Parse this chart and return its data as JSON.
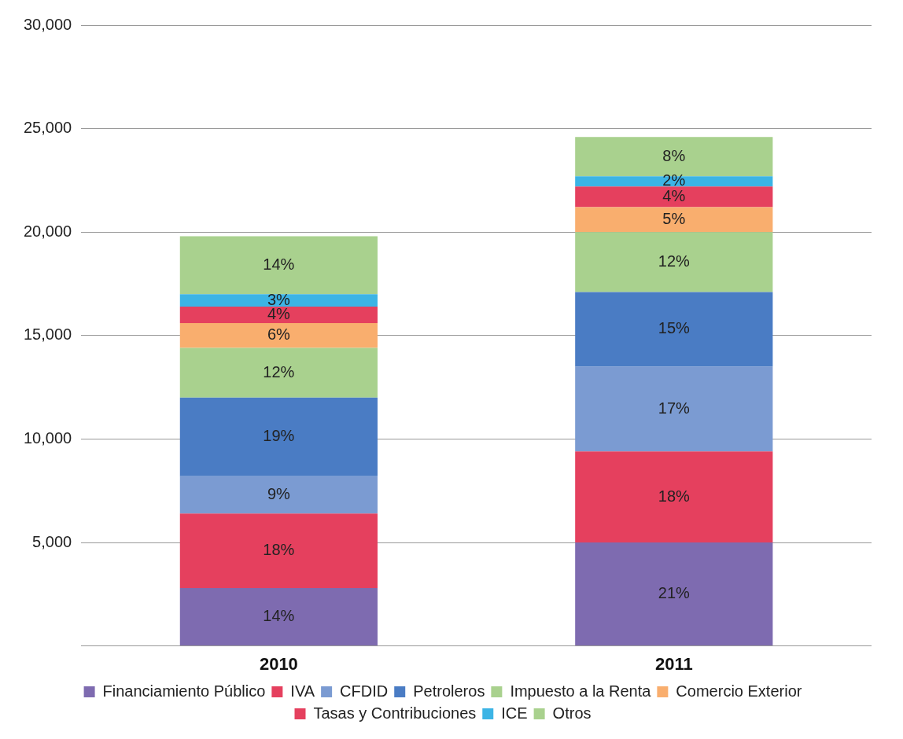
{
  "chart_data": {
    "type": "bar",
    "stacked": true,
    "categories": [
      "2010",
      "2011"
    ],
    "series": [
      {
        "name": "Financiamiento Público",
        "color": "#7e6bb0",
        "values": [
          2800,
          5000
        ]
      },
      {
        "name": "IVA",
        "color": "#e5405e",
        "values": [
          3600,
          4400
        ]
      },
      {
        "name": "CFDID",
        "color": "#7b9bd2",
        "values": [
          1800,
          4100
        ]
      },
      {
        "name": "Petroleros",
        "color": "#4a7cc4",
        "values": [
          3800,
          3600
        ]
      },
      {
        "name": "Impuesto a la Renta",
        "color": "#a9d18e",
        "values": [
          2400,
          2900
        ]
      },
      {
        "name": "Comercio Exterior",
        "color": "#f9ae6e",
        "values": [
          1200,
          1200
        ]
      },
      {
        "name": "Tasas y Contribuciones",
        "color": "#e5405e",
        "values": [
          800,
          1000
        ]
      },
      {
        "name": "ICE",
        "color": "#3cb4e5",
        "values": [
          600,
          500
        ]
      },
      {
        "name": "Otros",
        "color": "#a9d18e",
        "values": [
          2800,
          1900
        ]
      }
    ],
    "annotations": [
      "14%",
      "18%",
      "9%",
      "19%",
      "12%",
      "6%",
      "4%",
      "3%",
      "14%",
      "21%",
      "18%",
      "17%",
      "15%",
      "12%",
      "5%",
      "4%",
      "2%",
      "8%"
    ],
    "ylim": [
      0,
      30000
    ],
    "yticks": [
      {
        "value": 0,
        "label": null
      },
      {
        "value": 5000,
        "label": "5,000"
      },
      {
        "value": 10000,
        "label": "10,000"
      },
      {
        "value": 15000,
        "label": "15,000"
      },
      {
        "value": 20000,
        "label": "20,000"
      },
      {
        "value": 25000,
        "label": "25,000"
      },
      {
        "value": 30000,
        "label": "30,000"
      }
    ],
    "grid": "y",
    "legend": "bottom"
  }
}
